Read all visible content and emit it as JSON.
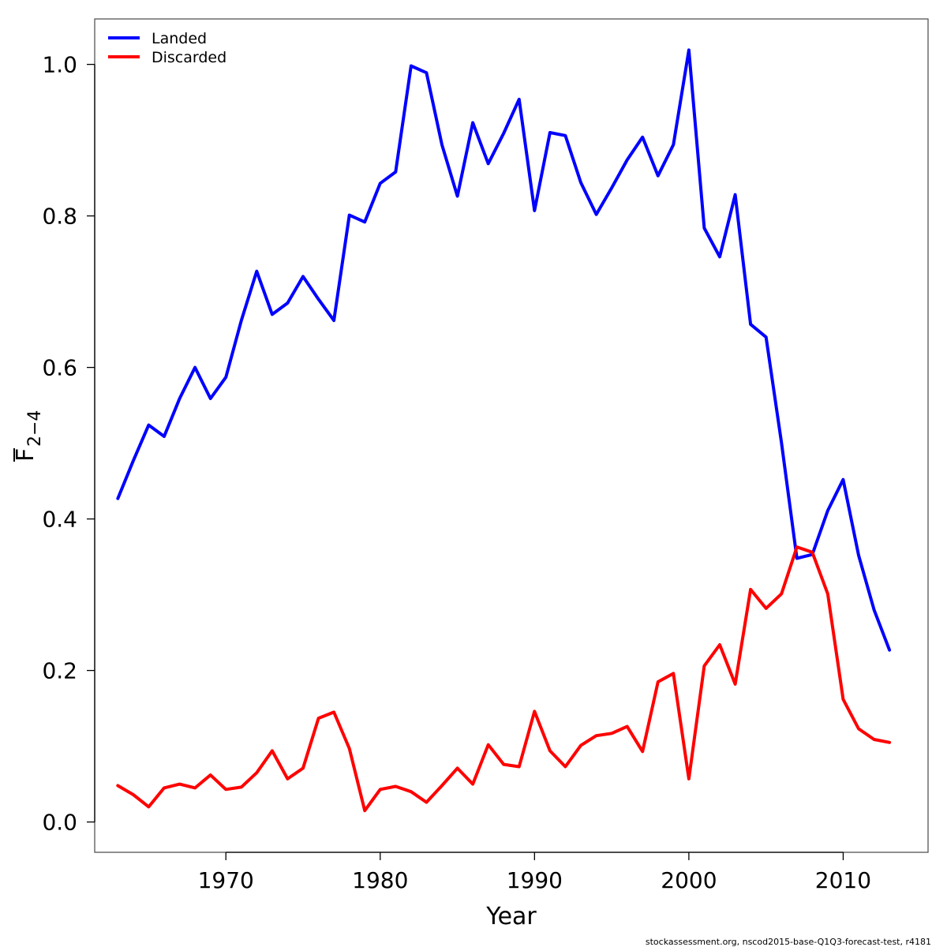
{
  "chart_data": {
    "type": "line",
    "xlabel": "Year",
    "ylabel_main": "F",
    "ylabel_sub": "2−4",
    "xlim": [
      1961.5,
      2015.5
    ],
    "ylim": [
      -0.04,
      1.06
    ],
    "x_ticks": [
      1970,
      1980,
      1990,
      2000,
      2010
    ],
    "y_ticks": [
      0.0,
      0.2,
      0.4,
      0.6,
      0.8,
      1.0
    ],
    "y_tick_labels": [
      "0.0",
      "0.2",
      "0.4",
      "0.6",
      "0.8",
      "1.0"
    ],
    "grid": false,
    "legend_position": "top-left",
    "x": [
      1963,
      1964,
      1965,
      1966,
      1967,
      1968,
      1969,
      1970,
      1971,
      1972,
      1973,
      1974,
      1975,
      1976,
      1977,
      1978,
      1979,
      1980,
      1981,
      1982,
      1983,
      1984,
      1985,
      1986,
      1987,
      1988,
      1989,
      1990,
      1991,
      1992,
      1993,
      1994,
      1995,
      1996,
      1997,
      1998,
      1999,
      2000,
      2001,
      2002,
      2003,
      2004,
      2005,
      2006,
      2007,
      2008,
      2009,
      2010,
      2011,
      2012,
      2013
    ],
    "series": [
      {
        "name": "Landed",
        "color": "#0000ff",
        "values": [
          0.427,
          0.477,
          0.524,
          0.509,
          0.559,
          0.6,
          0.559,
          0.587,
          0.662,
          0.727,
          0.67,
          0.685,
          0.72,
          0.69,
          0.662,
          0.801,
          0.792,
          0.843,
          0.858,
          0.998,
          0.989,
          0.894,
          0.826,
          0.923,
          0.869,
          0.909,
          0.954,
          0.807,
          0.91,
          0.906,
          0.844,
          0.802,
          0.837,
          0.874,
          0.904,
          0.853,
          0.894,
          1.019,
          0.784,
          0.746,
          0.828,
          0.657,
          0.64,
          0.501,
          0.348,
          0.353,
          0.411,
          0.452,
          0.352,
          0.28,
          0.227
        ]
      },
      {
        "name": "Discarded",
        "color": "#ff0000",
        "values": [
          0.048,
          0.036,
          0.02,
          0.045,
          0.05,
          0.045,
          0.062,
          0.043,
          0.046,
          0.065,
          0.094,
          0.057,
          0.071,
          0.137,
          0.145,
          0.097,
          0.015,
          0.043,
          0.047,
          0.04,
          0.026,
          0.048,
          0.071,
          0.05,
          0.102,
          0.076,
          0.073,
          0.146,
          0.094,
          0.073,
          0.101,
          0.114,
          0.117,
          0.126,
          0.093,
          0.185,
          0.196,
          0.057,
          0.206,
          0.234,
          0.182,
          0.307,
          0.282,
          0.301,
          0.363,
          0.356,
          0.301,
          0.162,
          0.123,
          0.109,
          0.105
        ]
      }
    ]
  },
  "footer_text": "stockassessment.org, nscod2015-base-Q1Q3-forecast-test, r4181"
}
